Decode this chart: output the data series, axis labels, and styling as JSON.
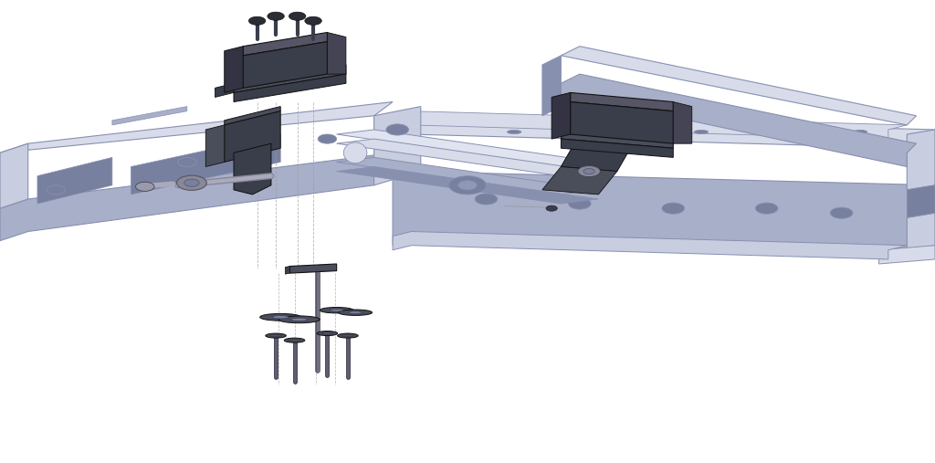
{
  "background_color": "#ffffff",
  "frame_light": "#c8cde0",
  "frame_mid": "#a8afc8",
  "frame_dark": "#8890b0",
  "frame_shadow": "#6870a0",
  "shine": "#d8dcea",
  "dark_part": "#3a3d4a",
  "dark_mid": "#4a4d5a",
  "bolt_dark": "#2a2d35",
  "hardware_grey": "#555870",
  "guide_color": "#999999",
  "rail_top": "#b8bdd2",
  "rail_face": "#9aa0bc",
  "rail_inner": "#7880a0",
  "end_face": "#c0c8dc",
  "white_bg": "#ffffff"
}
